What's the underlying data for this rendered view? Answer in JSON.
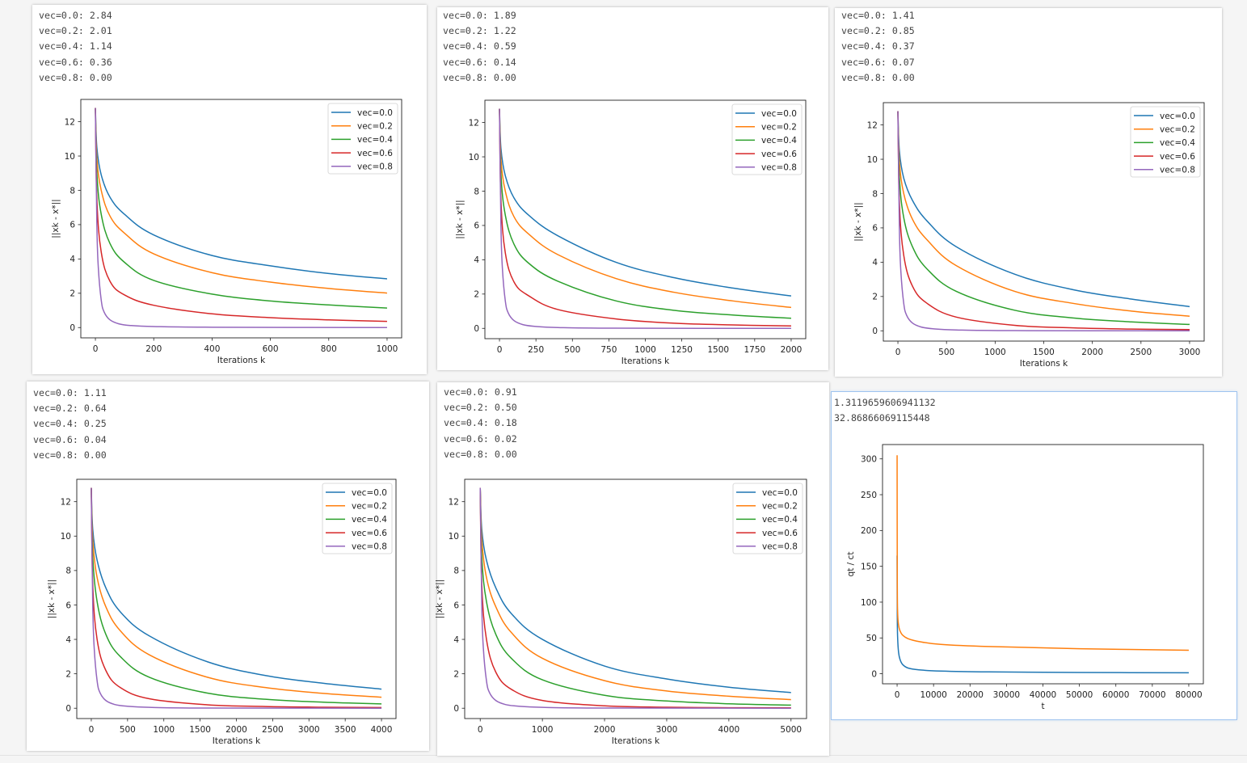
{
  "colors": {
    "vec_0_0": "#1f77b4",
    "vec_0_2": "#ff7f0e",
    "vec_0_4": "#2ca02c",
    "vec_0_6": "#d62728",
    "vec_0_8": "#9467bd"
  },
  "panels": [
    {
      "output_lines": [
        "vec=0.0: 2.84",
        "vec=0.2: 2.01",
        "vec=0.4: 1.14",
        "vec=0.6: 0.36",
        "vec=0.8: 0.00"
      ]
    },
    {
      "output_lines": [
        "vec=0.0: 1.89",
        "vec=0.2: 1.22",
        "vec=0.4: 0.59",
        "vec=0.6: 0.14",
        "vec=0.8: 0.00"
      ]
    },
    {
      "output_lines": [
        "vec=0.0: 1.41",
        "vec=0.2: 0.85",
        "vec=0.4: 0.37",
        "vec=0.6: 0.07",
        "vec=0.8: 0.00"
      ]
    },
    {
      "output_lines": [
        "vec=0.0: 1.11",
        "vec=0.2: 0.64",
        "vec=0.4: 0.25",
        "vec=0.6: 0.04",
        "vec=0.8: 0.00"
      ]
    },
    {
      "output_lines": [
        "vec=0.0: 0.91",
        "vec=0.2: 0.50",
        "vec=0.4: 0.18",
        "vec=0.6: 0.02",
        "vec=0.8: 0.00"
      ]
    },
    {
      "output_lines": [
        "1.3119659606941132",
        "32.86866069115448"
      ]
    }
  ],
  "chart_data": [
    {
      "type": "line",
      "xlabel": "Iterations k",
      "ylabel": "||xk - x*||",
      "xlim": [
        -50,
        1050
      ],
      "ylim": [
        -0.6,
        13.3
      ],
      "xticks": [
        0,
        200,
        400,
        600,
        800,
        1000
      ],
      "xtick_labels": [
        "0",
        "200",
        "400",
        "600",
        "800",
        "1000"
      ],
      "yticks": [
        0,
        2,
        4,
        6,
        8,
        10,
        12
      ],
      "ytick_labels": [
        "0",
        "2",
        "4",
        "6",
        "8",
        "10",
        "12"
      ],
      "legend": "upper-right",
      "grid": false,
      "series": [
        {
          "name": "vec=0.0",
          "color_key": "vec_0_0",
          "x": [
            0,
            5,
            20,
            50,
            100,
            200,
            400,
            600,
            800,
            1000
          ],
          "y": [
            12.8,
            10.5,
            8.9,
            7.6,
            6.6,
            5.4,
            4.2,
            3.6,
            3.15,
            2.84
          ]
        },
        {
          "name": "vec=0.2",
          "color_key": "vec_0_2",
          "x": [
            0,
            5,
            20,
            50,
            100,
            200,
            400,
            600,
            800,
            1000
          ],
          "y": [
            12.8,
            9.9,
            8.0,
            6.5,
            5.5,
            4.3,
            3.2,
            2.65,
            2.28,
            2.01
          ]
        },
        {
          "name": "vec=0.4",
          "color_key": "vec_0_4",
          "x": [
            0,
            5,
            20,
            50,
            100,
            200,
            400,
            600,
            800,
            1000
          ],
          "y": [
            12.8,
            9.0,
            6.6,
            4.9,
            3.8,
            2.75,
            1.95,
            1.55,
            1.32,
            1.14
          ]
        },
        {
          "name": "vec=0.6",
          "color_key": "vec_0_6",
          "x": [
            0,
            5,
            20,
            50,
            100,
            200,
            400,
            600,
            800,
            1000
          ],
          "y": [
            12.8,
            7.5,
            4.4,
            2.7,
            1.9,
            1.3,
            0.8,
            0.58,
            0.45,
            0.36
          ]
        },
        {
          "name": "vec=0.8",
          "color_key": "vec_0_8",
          "x": [
            0,
            5,
            10,
            20,
            30,
            50,
            80,
            120,
            200,
            400,
            1000
          ],
          "y": [
            12.8,
            6.0,
            3.5,
            1.6,
            0.9,
            0.45,
            0.22,
            0.12,
            0.06,
            0.02,
            0.0
          ]
        }
      ]
    },
    {
      "type": "line",
      "xlabel": "Iterations k",
      "ylabel": "||xk - x*||",
      "xlim": [
        -100,
        2100
      ],
      "ylim": [
        -0.6,
        13.3
      ],
      "xticks": [
        0,
        250,
        500,
        750,
        1000,
        1250,
        1500,
        1750,
        2000
      ],
      "xtick_labels": [
        "0",
        "250",
        "500",
        "750",
        "1000",
        "1250",
        "1500",
        "1750",
        "2000"
      ],
      "yticks": [
        0,
        2,
        4,
        6,
        8,
        10,
        12
      ],
      "ytick_labels": [
        "0",
        "2",
        "4",
        "6",
        "8",
        "10",
        "12"
      ],
      "legend": "upper-right",
      "grid": false,
      "series": [
        {
          "name": "vec=0.0",
          "color_key": "vec_0_0",
          "x": [
            0,
            10,
            40,
            100,
            200,
            400,
            800,
            1200,
            1600,
            2000
          ],
          "y": [
            12.8,
            10.5,
            8.9,
            7.6,
            6.6,
            5.4,
            3.85,
            2.95,
            2.35,
            1.89
          ]
        },
        {
          "name": "vec=0.2",
          "color_key": "vec_0_2",
          "x": [
            0,
            10,
            40,
            100,
            200,
            400,
            800,
            1200,
            1600,
            2000
          ],
          "y": [
            12.8,
            9.9,
            8.0,
            6.5,
            5.5,
            4.3,
            2.9,
            2.1,
            1.6,
            1.22
          ]
        },
        {
          "name": "vec=0.4",
          "color_key": "vec_0_4",
          "x": [
            0,
            10,
            40,
            100,
            200,
            400,
            800,
            1200,
            1600,
            2000
          ],
          "y": [
            12.8,
            9.0,
            6.6,
            4.9,
            3.8,
            2.75,
            1.6,
            1.05,
            0.78,
            0.59
          ]
        },
        {
          "name": "vec=0.6",
          "color_key": "vec_0_6",
          "x": [
            0,
            10,
            40,
            100,
            200,
            400,
            800,
            1200,
            1600,
            2000
          ],
          "y": [
            12.8,
            7.5,
            4.4,
            2.7,
            1.9,
            1.1,
            0.55,
            0.3,
            0.2,
            0.14
          ]
        },
        {
          "name": "vec=0.8",
          "color_key": "vec_0_8",
          "x": [
            0,
            10,
            20,
            40,
            60,
            100,
            160,
            240,
            400,
            800,
            2000
          ],
          "y": [
            12.8,
            6.0,
            3.5,
            1.6,
            0.9,
            0.45,
            0.22,
            0.12,
            0.05,
            0.01,
            0.0
          ]
        }
      ]
    },
    {
      "type": "line",
      "xlabel": "Iterations k",
      "ylabel": "||xk - x*||",
      "xlim": [
        -150,
        3150
      ],
      "ylim": [
        -0.6,
        13.3
      ],
      "xticks": [
        0,
        500,
        1000,
        1500,
        2000,
        2500,
        3000
      ],
      "xtick_labels": [
        "0",
        "500",
        "1000",
        "1500",
        "2000",
        "2500",
        "3000"
      ],
      "yticks": [
        0,
        2,
        4,
        6,
        8,
        10,
        12
      ],
      "ytick_labels": [
        "0",
        "2",
        "4",
        "6",
        "8",
        "10",
        "12"
      ],
      "legend": "upper-right",
      "grid": false,
      "series": [
        {
          "name": "vec=0.0",
          "color_key": "vec_0_0",
          "x": [
            0,
            15,
            60,
            150,
            300,
            600,
            1200,
            1800,
            2400,
            3000
          ],
          "y": [
            12.8,
            10.5,
            8.9,
            7.6,
            6.4,
            4.9,
            3.3,
            2.4,
            1.85,
            1.41
          ]
        },
        {
          "name": "vec=0.2",
          "color_key": "vec_0_2",
          "x": [
            0,
            15,
            60,
            150,
            300,
            600,
            1200,
            1800,
            2400,
            3000
          ],
          "y": [
            12.8,
            9.9,
            8.0,
            6.5,
            5.3,
            3.8,
            2.3,
            1.6,
            1.15,
            0.85
          ]
        },
        {
          "name": "vec=0.4",
          "color_key": "vec_0_4",
          "x": [
            0,
            15,
            60,
            150,
            300,
            600,
            1200,
            1800,
            2400,
            3000
          ],
          "y": [
            12.8,
            9.0,
            6.6,
            4.9,
            3.6,
            2.3,
            1.2,
            0.75,
            0.52,
            0.37
          ]
        },
        {
          "name": "vec=0.6",
          "color_key": "vec_0_6",
          "x": [
            0,
            15,
            60,
            150,
            300,
            600,
            1200,
            1800,
            2400,
            3000
          ],
          "y": [
            12.8,
            7.5,
            4.4,
            2.6,
            1.6,
            0.8,
            0.32,
            0.17,
            0.1,
            0.07
          ]
        },
        {
          "name": "vec=0.8",
          "color_key": "vec_0_8",
          "x": [
            0,
            15,
            30,
            60,
            90,
            150,
            240,
            360,
            600,
            1200,
            3000
          ],
          "y": [
            12.8,
            6.0,
            3.5,
            1.6,
            0.9,
            0.45,
            0.22,
            0.12,
            0.05,
            0.01,
            0.0
          ]
        }
      ]
    },
    {
      "type": "line",
      "xlabel": "Iterations k",
      "ylabel": "||xk - x*||",
      "xlim": [
        -200,
        4200
      ],
      "ylim": [
        -0.6,
        13.3
      ],
      "xticks": [
        0,
        500,
        1000,
        1500,
        2000,
        2500,
        3000,
        3500,
        4000
      ],
      "xtick_labels": [
        "0",
        "500",
        "1000",
        "1500",
        "2000",
        "2500",
        "3000",
        "3500",
        "4000"
      ],
      "yticks": [
        0,
        2,
        4,
        6,
        8,
        10,
        12
      ],
      "ytick_labels": [
        "0",
        "2",
        "4",
        "6",
        "8",
        "10",
        "12"
      ],
      "legend": "upper-right",
      "grid": false,
      "series": [
        {
          "name": "vec=0.0",
          "color_key": "vec_0_0",
          "x": [
            0,
            20,
            80,
            200,
            400,
            800,
            1600,
            2400,
            3200,
            4000
          ],
          "y": [
            12.8,
            10.4,
            8.6,
            7.0,
            5.6,
            4.2,
            2.7,
            1.9,
            1.45,
            1.11
          ]
        },
        {
          "name": "vec=0.2",
          "color_key": "vec_0_2",
          "x": [
            0,
            20,
            80,
            200,
            400,
            800,
            1600,
            2400,
            3200,
            4000
          ],
          "y": [
            12.8,
            9.8,
            7.6,
            5.9,
            4.5,
            3.1,
            1.8,
            1.2,
            0.86,
            0.64
          ]
        },
        {
          "name": "vec=0.4",
          "color_key": "vec_0_4",
          "x": [
            0,
            20,
            80,
            200,
            400,
            800,
            1600,
            2400,
            3200,
            4000
          ],
          "y": [
            12.8,
            8.8,
            6.2,
            4.3,
            3.0,
            1.8,
            0.88,
            0.52,
            0.35,
            0.25
          ]
        },
        {
          "name": "vec=0.6",
          "color_key": "vec_0_6",
          "x": [
            0,
            20,
            80,
            200,
            400,
            800,
            1600,
            2400,
            3200,
            4000
          ],
          "y": [
            12.8,
            7.2,
            4.0,
            2.2,
            1.2,
            0.55,
            0.2,
            0.1,
            0.06,
            0.04
          ]
        },
        {
          "name": "vec=0.8",
          "color_key": "vec_0_8",
          "x": [
            0,
            20,
            40,
            80,
            120,
            200,
            320,
            480,
            800,
            1600,
            4000
          ],
          "y": [
            12.8,
            6.0,
            3.5,
            1.6,
            0.9,
            0.45,
            0.22,
            0.12,
            0.05,
            0.01,
            0.0
          ]
        }
      ]
    },
    {
      "type": "line",
      "xlabel": "Iterations k",
      "ylabel": "||xk - x*||",
      "xlim": [
        -250,
        5250
      ],
      "ylim": [
        -0.6,
        13.3
      ],
      "xticks": [
        0,
        1000,
        2000,
        3000,
        4000,
        5000
      ],
      "xtick_labels": [
        "0",
        "1000",
        "2000",
        "3000",
        "4000",
        "5000"
      ],
      "yticks": [
        0,
        2,
        4,
        6,
        8,
        10,
        12
      ],
      "ytick_labels": [
        "0",
        "2",
        "4",
        "6",
        "8",
        "10",
        "12"
      ],
      "legend": "upper-right",
      "grid": false,
      "series": [
        {
          "name": "vec=0.0",
          "color_key": "vec_0_0",
          "x": [
            0,
            25,
            100,
            250,
            500,
            1000,
            2000,
            3000,
            4000,
            5000
          ],
          "y": [
            12.8,
            10.4,
            8.6,
            7.0,
            5.5,
            4.0,
            2.45,
            1.7,
            1.22,
            0.91
          ]
        },
        {
          "name": "vec=0.2",
          "color_key": "vec_0_2",
          "x": [
            0,
            25,
            100,
            250,
            500,
            1000,
            2000,
            3000,
            4000,
            5000
          ],
          "y": [
            12.8,
            9.8,
            7.6,
            5.9,
            4.4,
            2.9,
            1.6,
            1.0,
            0.7,
            0.5
          ]
        },
        {
          "name": "vec=0.4",
          "color_key": "vec_0_4",
          "x": [
            0,
            25,
            100,
            250,
            500,
            1000,
            2000,
            3000,
            4000,
            5000
          ],
          "y": [
            12.8,
            8.8,
            6.2,
            4.3,
            2.9,
            1.65,
            0.75,
            0.42,
            0.26,
            0.18
          ]
        },
        {
          "name": "vec=0.6",
          "color_key": "vec_0_6",
          "x": [
            0,
            25,
            100,
            250,
            500,
            1000,
            2000,
            3000,
            4000,
            5000
          ],
          "y": [
            12.8,
            7.2,
            4.0,
            2.1,
            1.1,
            0.45,
            0.14,
            0.06,
            0.03,
            0.02
          ]
        },
        {
          "name": "vec=0.8",
          "color_key": "vec_0_8",
          "x": [
            0,
            25,
            50,
            100,
            150,
            250,
            400,
            600,
            1000,
            2000,
            5000
          ],
          "y": [
            12.8,
            6.0,
            3.5,
            1.6,
            0.9,
            0.45,
            0.22,
            0.12,
            0.05,
            0.01,
            0.0
          ]
        }
      ]
    },
    {
      "type": "line",
      "xlabel": "t",
      "ylabel": "qt / ct",
      "xlim": [
        -4000,
        84000
      ],
      "ylim": [
        -14,
        320
      ],
      "xticks": [
        0,
        10000,
        20000,
        30000,
        40000,
        50000,
        60000,
        70000,
        80000
      ],
      "xtick_labels": [
        "0",
        "10000",
        "20000",
        "30000",
        "40000",
        "50000",
        "60000",
        "70000",
        "80000"
      ],
      "yticks": [
        0,
        50,
        100,
        150,
        200,
        250,
        300
      ],
      "ytick_labels": [
        "0",
        "50",
        "100",
        "150",
        "200",
        "250",
        "300"
      ],
      "legend": "none",
      "grid": false,
      "series": [
        {
          "name": "qt",
          "color_key": "vec_0_0",
          "x": [
            0,
            50,
            150,
            400,
            800,
            1500,
            3000,
            6000,
            12000,
            25000,
            50000,
            80000
          ],
          "y": [
            165,
            80,
            50,
            30,
            20,
            13,
            8,
            5.5,
            3.8,
            2.6,
            1.8,
            1.31
          ]
        },
        {
          "name": "ct",
          "color_key": "vec_0_2",
          "x": [
            0,
            50,
            150,
            400,
            800,
            1500,
            3000,
            6000,
            12000,
            25000,
            50000,
            80000
          ],
          "y": [
            305,
            130,
            85,
            68,
            60,
            54,
            49,
            45,
            41,
            38,
            35,
            32.87
          ]
        }
      ]
    }
  ]
}
